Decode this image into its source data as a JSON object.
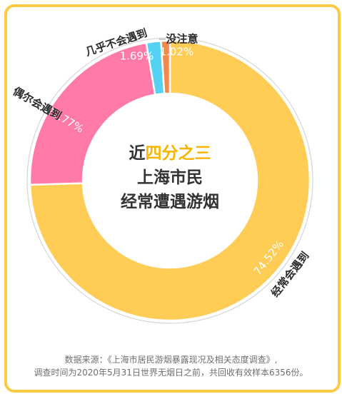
{
  "chart_data": {
    "type": "pie",
    "title_lines": [
      {
        "prefix": "近",
        "highlight": "四分之三",
        "suffix": ""
      },
      {
        "prefix": "上海市民",
        "highlight": "",
        "suffix": ""
      },
      {
        "prefix": "经常遭遇游烟",
        "highlight": "",
        "suffix": ""
      }
    ],
    "slices": [
      {
        "label": "经常会遇到",
        "value": 74.52,
        "display": "74.52%",
        "color": "#FFCC55"
      },
      {
        "label": "偶尔会遇到",
        "value": 22.77,
        "display": "22.77%",
        "color": "#FF7AA8"
      },
      {
        "label": "几乎不会遇到",
        "value": 1.69,
        "display": "1.69%",
        "color": "#55D1F4"
      },
      {
        "label": "没注意",
        "value": 1.02,
        "display": "1.02%",
        "color": "#F2884A"
      }
    ],
    "highlight_color": "#F7B500",
    "source_line1": "数据来源：《上海市居民游烟暴露现况及相关态度调查》,",
    "source_line2": "调查时间为2020年5月31日世界无烟日之前，共回收有效样本6356份。"
  }
}
